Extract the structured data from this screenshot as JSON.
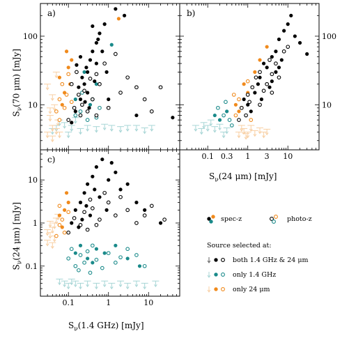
{
  "colors": {
    "both": "#000000",
    "only_radio": "#1a8a8a",
    "only_radio_limit": "#a8d6d6",
    "only_24um": "#f08a1c",
    "only_24um_limit": "#f8cfa3",
    "open_both": "#000000"
  },
  "axis_text": {
    "y70": "S",
    "y70_sub": "ν",
    "y70_rest": "(70 μm) [mJy]",
    "x24": "S",
    "x24_sub": "ν",
    "x24_rest": "(24 μm) [mJy]",
    "y24": "S",
    "y24_sub": "ν",
    "y24_rest": "(24 μm) [mJy]",
    "x14": "S",
    "x14_sub": "ν",
    "x14_rest": "(1.4 GHz) [mJy]"
  },
  "legend": {
    "specz": "spec-z",
    "photoz": "photo-z",
    "heading": "Source selected at:",
    "both": "both 1.4 GHz & 24 μm",
    "only_radio": "only 1.4 GHz",
    "only_24": "only 24 μm"
  },
  "chart_data": [
    {
      "panel": "a)",
      "type": "scatter",
      "xlabel": "",
      "ylabel": "Sν(70 μm) [mJy]",
      "xscale": "log",
      "yscale": "log",
      "xlim": [
        0.02,
        60
      ],
      "ylim": [
        2.2,
        300
      ],
      "xticks": [
        0.1,
        1,
        10
      ],
      "xtick_labels": [
        "",
        "",
        ""
      ],
      "yticks": [
        10,
        100
      ],
      "ytick_labels": [
        "10",
        "100"
      ],
      "points": {
        "both_spec": [
          [
            0.12,
            5.5
          ],
          [
            0.15,
            8
          ],
          [
            0.2,
            12
          ],
          [
            0.25,
            20
          ],
          [
            0.3,
            30
          ],
          [
            0.35,
            45
          ],
          [
            0.4,
            60
          ],
          [
            0.5,
            80
          ],
          [
            0.6,
            110
          ],
          [
            0.8,
            150
          ],
          [
            1.5,
            250
          ],
          [
            0.3,
            15
          ],
          [
            0.22,
            25
          ],
          [
            0.18,
            18
          ],
          [
            0.28,
            35
          ],
          [
            0.45,
            22
          ],
          [
            0.7,
            60
          ],
          [
            1.0,
            12
          ],
          [
            2.5,
            200
          ],
          [
            0.33,
            9
          ],
          [
            0.26,
            11
          ],
          [
            0.5,
            40
          ],
          [
            0.9,
            30
          ],
          [
            5,
            7
          ],
          [
            40,
            6.5
          ],
          [
            0.2,
            50
          ],
          [
            0.16,
            38
          ],
          [
            0.4,
            140
          ],
          [
            0.55,
            90
          ]
        ],
        "both_photo": [
          [
            0.1,
            6
          ],
          [
            0.14,
            9
          ],
          [
            0.18,
            14
          ],
          [
            0.22,
            10
          ],
          [
            0.3,
            8
          ],
          [
            0.4,
            12
          ],
          [
            0.6,
            20
          ],
          [
            1,
            9
          ],
          [
            2,
            15
          ],
          [
            3,
            25
          ],
          [
            5,
            18
          ],
          [
            8,
            12
          ],
          [
            12,
            8
          ],
          [
            0.5,
            7
          ],
          [
            0.25,
            16
          ],
          [
            0.35,
            24
          ],
          [
            0.8,
            40
          ],
          [
            1.5,
            55
          ],
          [
            0.2,
            7
          ],
          [
            0.12,
            20
          ],
          [
            0.16,
            30
          ],
          [
            0.5,
            28
          ],
          [
            20,
            18
          ]
        ],
        "radio_spec": [
          [
            0.25,
            30
          ],
          [
            0.5,
            20
          ],
          [
            1.2,
            75
          ],
          [
            0.15,
            12
          ],
          [
            0.35,
            10
          ]
        ],
        "radio_photo": [
          [
            0.2,
            8
          ],
          [
            0.3,
            6
          ],
          [
            0.4,
            12
          ],
          [
            0.22,
            15
          ],
          [
            0.6,
            9
          ],
          [
            0.15,
            7
          ],
          [
            0.5,
            6.5
          ]
        ],
        "radio_limits": [
          [
            0.05,
            5
          ],
          [
            0.08,
            5.5
          ],
          [
            0.12,
            5
          ],
          [
            0.2,
            4.5
          ],
          [
            0.3,
            5
          ],
          [
            0.5,
            4.8
          ],
          [
            0.8,
            5.2
          ],
          [
            1.2,
            5
          ],
          [
            2,
            4.8
          ],
          [
            3,
            5
          ],
          [
            5,
            5
          ],
          [
            8,
            4.6
          ],
          [
            12,
            5
          ],
          [
            0.04,
            4.5
          ],
          [
            0.06,
            6
          ],
          [
            0.1,
            4
          ],
          [
            0.15,
            6.5
          ]
        ],
        "mir_spec": [
          [
            0.06,
            25
          ],
          [
            0.08,
            15
          ],
          [
            0.1,
            35
          ],
          [
            0.12,
            45
          ],
          [
            0.09,
            60
          ],
          [
            0.07,
            10
          ],
          [
            0.11,
            20
          ],
          [
            1.8,
            180
          ]
        ],
        "mir_photo": [
          [
            0.05,
            8
          ],
          [
            0.06,
            12
          ],
          [
            0.07,
            20
          ],
          [
            0.08,
            9
          ],
          [
            0.09,
            14
          ],
          [
            0.1,
            28
          ],
          [
            0.06,
            6
          ],
          [
            0.12,
            11
          ]
        ],
        "mir_limits": [
          [
            0.03,
            4
          ],
          [
            0.04,
            5
          ],
          [
            0.05,
            4.5
          ],
          [
            0.035,
            7
          ],
          [
            0.045,
            10
          ],
          [
            0.055,
            6
          ],
          [
            0.04,
            14
          ],
          [
            0.03,
            20
          ],
          [
            0.05,
            30
          ],
          [
            0.04,
            3.5
          ],
          [
            0.06,
            4
          ],
          [
            0.035,
            9
          ]
        ]
      }
    },
    {
      "panel": "b)",
      "type": "scatter",
      "xlabel": "Sν(24 μm) [mJy]",
      "ylabel": "",
      "xscale": "log",
      "yscale": "log",
      "xlim": [
        0.02,
        60
      ],
      "ylim": [
        2.2,
        300
      ],
      "xticks": [
        0.1,
        0.3,
        1,
        3,
        10
      ],
      "xtick_labels": [
        "0.1",
        "0.3",
        "1",
        "3",
        "10"
      ],
      "yticks": [
        10,
        100
      ],
      "ytick_labels": [
        "",
        ""
      ],
      "points": {
        "both_spec": [
          [
            1,
            10
          ],
          [
            1.5,
            15
          ],
          [
            2,
            25
          ],
          [
            3,
            35
          ],
          [
            4,
            50
          ],
          [
            5,
            60
          ],
          [
            6,
            90
          ],
          [
            8,
            120
          ],
          [
            10,
            150
          ],
          [
            2.5,
            40
          ],
          [
            1.2,
            8
          ],
          [
            0.8,
            12
          ],
          [
            3.5,
            18
          ],
          [
            5,
            30
          ],
          [
            7,
            45
          ],
          [
            12,
            200
          ],
          [
            20,
            80
          ],
          [
            30,
            55
          ],
          [
            1.8,
            20
          ],
          [
            2.2,
            12
          ],
          [
            4,
            22
          ],
          [
            6,
            35
          ],
          [
            15,
            100
          ]
        ],
        "both_photo": [
          [
            0.7,
            9
          ],
          [
            1,
            14
          ],
          [
            1.3,
            18
          ],
          [
            2,
            10
          ],
          [
            3,
            20
          ],
          [
            4,
            28
          ],
          [
            5,
            40
          ],
          [
            6,
            25
          ],
          [
            8,
            60
          ],
          [
            0.9,
            7
          ],
          [
            1.6,
            25
          ],
          [
            2.5,
            16
          ],
          [
            3.5,
            45
          ],
          [
            10,
            70
          ],
          [
            0.6,
            6
          ],
          [
            2,
            30
          ],
          [
            4,
            15
          ],
          [
            1.1,
            11
          ]
        ],
        "radio_spec": [
          [
            0.2,
            6
          ],
          [
            0.3,
            8
          ],
          [
            0.15,
            7
          ]
        ],
        "radio_photo": [
          [
            0.25,
            7
          ],
          [
            0.18,
            9
          ],
          [
            0.35,
            6
          ],
          [
            0.28,
            11
          ],
          [
            0.4,
            5
          ]
        ],
        "radio_limits": [
          [
            0.05,
            5
          ],
          [
            0.07,
            4.5
          ],
          [
            0.1,
            5
          ],
          [
            0.15,
            4.8
          ],
          [
            0.2,
            5.2
          ],
          [
            0.25,
            4
          ],
          [
            0.12,
            6
          ],
          [
            0.08,
            5.5
          ],
          [
            0.3,
            4.6
          ]
        ],
        "mir_spec": [
          [
            0.5,
            10
          ],
          [
            0.8,
            20
          ],
          [
            1,
            15
          ],
          [
            1.5,
            30
          ],
          [
            2,
            45
          ],
          [
            0.6,
            8
          ],
          [
            3,
            70
          ]
        ],
        "mir_photo": [
          [
            0.5,
            7
          ],
          [
            0.6,
            12
          ],
          [
            0.7,
            9
          ],
          [
            1,
            22
          ],
          [
            1.2,
            6
          ],
          [
            0.45,
            14
          ]
        ],
        "mir_limits": [
          [
            0.6,
            4
          ],
          [
            0.8,
            4.5
          ],
          [
            1,
            4
          ],
          [
            1.2,
            5
          ],
          [
            1.5,
            4.2
          ],
          [
            2,
            4.6
          ],
          [
            2.5,
            4
          ],
          [
            3,
            4.4
          ],
          [
            0.7,
            5
          ],
          [
            0.9,
            3.8
          ]
        ]
      }
    },
    {
      "panel": "c)",
      "type": "scatter",
      "xlabel": "Sν(1.4 GHz) [mJy]",
      "ylabel": "Sν(24 μm) [mJy]",
      "xscale": "log",
      "yscale": "log",
      "xlim": [
        0.02,
        60
      ],
      "ylim": [
        0.02,
        50
      ],
      "xticks": [
        0.1,
        1,
        10
      ],
      "xtick_labels": [
        "0.1",
        "1",
        "10"
      ],
      "yticks": [
        0.1,
        1,
        10
      ],
      "ytick_labels": [
        "0.1",
        "1",
        "10"
      ],
      "points": {
        "both_spec": [
          [
            0.12,
            1
          ],
          [
            0.15,
            2
          ],
          [
            0.2,
            3
          ],
          [
            0.25,
            5
          ],
          [
            0.3,
            8
          ],
          [
            0.4,
            12
          ],
          [
            0.5,
            20
          ],
          [
            0.7,
            30
          ],
          [
            1,
            10
          ],
          [
            1.5,
            15
          ],
          [
            2,
            6
          ],
          [
            0.35,
            1.5
          ],
          [
            0.18,
            0.8
          ],
          [
            0.6,
            4
          ],
          [
            0.9,
            2
          ],
          [
            3,
            8
          ],
          [
            5,
            3
          ],
          [
            8,
            2
          ],
          [
            0.22,
            1.2
          ],
          [
            0.28,
            2.5
          ],
          [
            0.45,
            6
          ],
          [
            1.2,
            25
          ],
          [
            20,
            1
          ]
        ],
        "both_photo": [
          [
            0.1,
            0.6
          ],
          [
            0.14,
            1.3
          ],
          [
            0.2,
            0.9
          ],
          [
            0.25,
            1.8
          ],
          [
            0.3,
            0.7
          ],
          [
            0.4,
            2.2
          ],
          [
            0.6,
            1.2
          ],
          [
            0.8,
            5
          ],
          [
            1,
            3
          ],
          [
            1.5,
            1.5
          ],
          [
            2,
            4
          ],
          [
            3,
            2
          ],
          [
            5,
            1
          ],
          [
            8,
            1.5
          ],
          [
            12,
            2.5
          ],
          [
            0.5,
            0.9
          ],
          [
            0.35,
            3.5
          ],
          [
            25,
            1.2
          ]
        ],
        "radio_spec": [
          [
            0.15,
            0.2
          ],
          [
            0.2,
            0.3
          ],
          [
            0.3,
            0.15
          ],
          [
            0.5,
            0.25
          ],
          [
            0.8,
            0.2
          ],
          [
            1.5,
            0.3
          ],
          [
            3,
            0.15
          ],
          [
            6,
            0.1
          ],
          [
            0.4,
            0.12
          ]
        ],
        "radio_photo": [
          [
            0.1,
            0.15
          ],
          [
            0.12,
            0.25
          ],
          [
            0.15,
            0.1
          ],
          [
            0.2,
            0.18
          ],
          [
            0.25,
            0.12
          ],
          [
            0.3,
            0.22
          ],
          [
            0.4,
            0.3
          ],
          [
            0.5,
            0.14
          ],
          [
            0.7,
            0.09
          ],
          [
            1,
            0.2
          ],
          [
            1.5,
            0.12
          ],
          [
            2,
            0.16
          ],
          [
            3,
            0.25
          ],
          [
            5,
            0.18
          ],
          [
            8,
            0.1
          ],
          [
            0.18,
            0.08
          ],
          [
            0.35,
            0.07
          ]
        ],
        "radio_limits": [
          [
            0.08,
            0.045
          ],
          [
            0.1,
            0.04
          ],
          [
            0.15,
            0.045
          ],
          [
            0.2,
            0.04
          ],
          [
            0.3,
            0.045
          ],
          [
            0.5,
            0.04
          ],
          [
            0.8,
            0.045
          ],
          [
            1.2,
            0.04
          ],
          [
            2,
            0.045
          ],
          [
            3,
            0.04
          ],
          [
            5,
            0.045
          ],
          [
            8,
            0.04
          ],
          [
            15,
            0.045
          ],
          [
            0.06,
            0.05
          ],
          [
            0.12,
            0.05
          ]
        ],
        "mir_spec": [
          [
            0.06,
            1.5
          ],
          [
            0.08,
            2
          ],
          [
            0.1,
            3
          ],
          [
            0.07,
            0.8
          ],
          [
            0.09,
            5
          ]
        ],
        "mir_photo": [
          [
            0.05,
            0.5
          ],
          [
            0.06,
            0.9
          ],
          [
            0.07,
            1.2
          ],
          [
            0.08,
            0.6
          ],
          [
            0.1,
            1.8
          ],
          [
            0.06,
            2.5
          ]
        ],
        "mir_limits": [
          [
            0.03,
            0.4
          ],
          [
            0.035,
            0.6
          ],
          [
            0.04,
            0.8
          ],
          [
            0.045,
            1
          ],
          [
            0.05,
            1.3
          ],
          [
            0.04,
            0.35
          ],
          [
            0.03,
            0.7
          ],
          [
            0.055,
            1.6
          ],
          [
            0.045,
            0.5
          ],
          [
            0.035,
            1.1
          ]
        ]
      }
    }
  ]
}
